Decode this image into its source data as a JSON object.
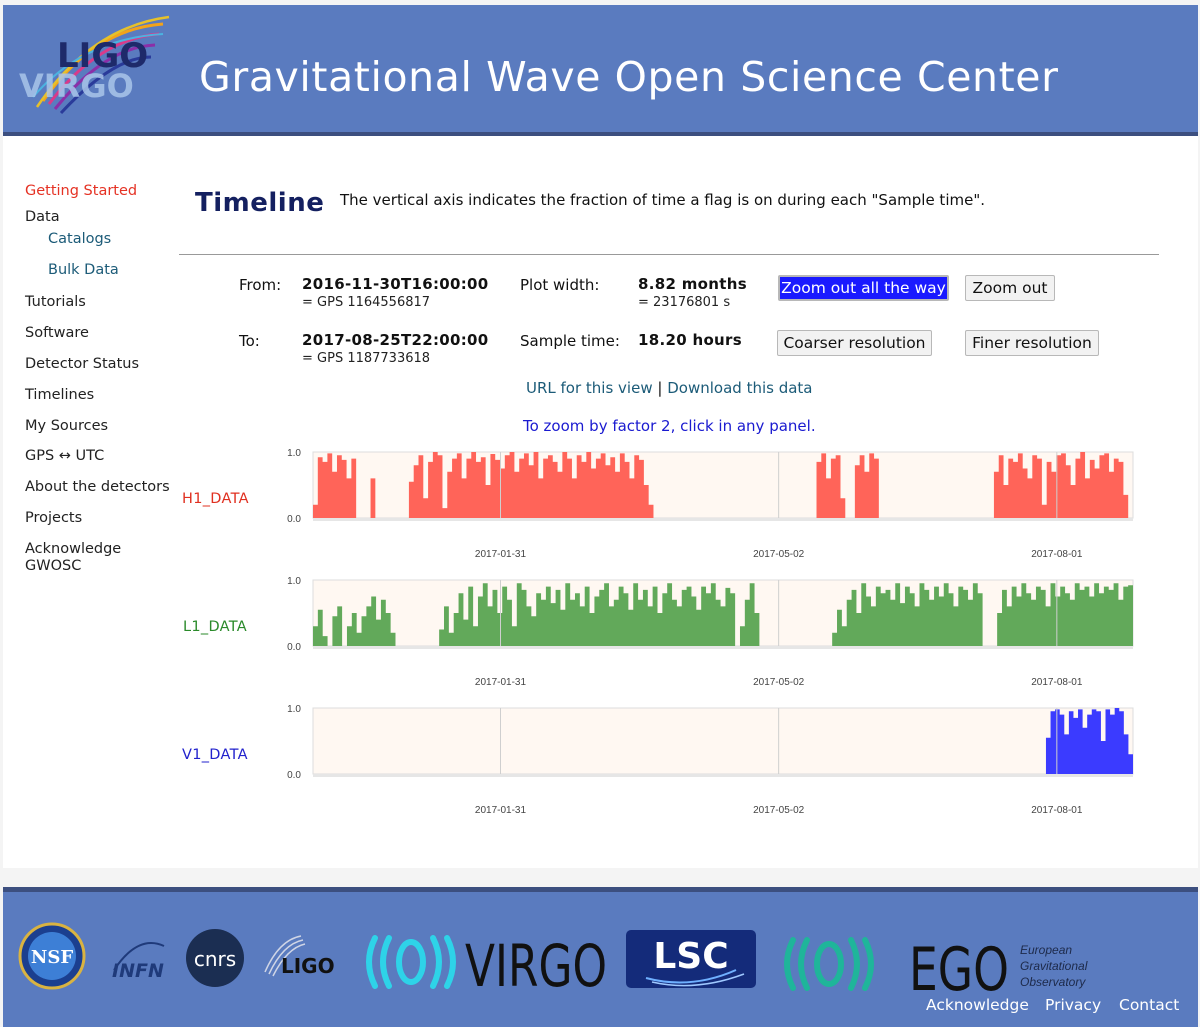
{
  "header": {
    "title": "Gravitational Wave Open Science Center",
    "logo_text_top": "LIGO",
    "logo_text_bottom": "VIRGO"
  },
  "sidebar": {
    "items": [
      {
        "label": "Getting Started",
        "active": true
      },
      {
        "label": "Data"
      },
      {
        "label": "Catalogs",
        "sub": true
      },
      {
        "label": "Bulk Data",
        "sub": true
      },
      {
        "label": "Tutorials"
      },
      {
        "label": "Software"
      },
      {
        "label": "Detector Status"
      },
      {
        "label": "Timelines"
      },
      {
        "label": "My Sources"
      },
      {
        "label": "GPS ↔ UTC"
      },
      {
        "label": "About the detectors"
      },
      {
        "label": "Projects"
      },
      {
        "label": "Acknowledge"
      },
      {
        "label": "GWOSC"
      }
    ]
  },
  "main": {
    "title": "Timeline",
    "description": "The vertical axis indicates the fraction of time a flag is on during each \"Sample time\".",
    "from_label": "From:",
    "from_value": "2016-11-30T16:00:00",
    "from_gps": "= GPS 1164556817",
    "to_label": "To:",
    "to_value": "2017-08-25T22:00:00",
    "to_gps": "= GPS 1187733618",
    "plot_width_label": "Plot width:",
    "plot_width_value": "8.82 months",
    "plot_width_seconds": "= 23176801 s",
    "sample_time_label": "Sample time:",
    "sample_time_value": "18.20 hours",
    "buttons": {
      "zoom_out_all": "Zoom out all the way",
      "zoom_out": "Zoom out",
      "coarser": "Coarser resolution",
      "finer": "Finer resolution"
    },
    "url_link": "URL for this view",
    "separator": "|",
    "download_link": "Download this data",
    "hint": "To zoom by factor 2, click in any panel."
  },
  "chart_data": {
    "type": "area",
    "x_range": [
      "2016-11-30T16:00:00",
      "2017-08-25T22:00:00"
    ],
    "ylim": [
      0,
      1
    ],
    "y_ticks": [
      "0.0",
      "1.0"
    ],
    "x_ticks": [
      "2017-01-31",
      "2017-05-02",
      "2017-08-01"
    ],
    "grid": true,
    "series": [
      {
        "name": "H1_DATA",
        "color": "#ff6459",
        "values": [
          0.2,
          0.92,
          0.85,
          0.98,
          0.7,
          0.95,
          0.88,
          0.6,
          0.9,
          0.0,
          0.0,
          0.0,
          0.6,
          0.0,
          0.0,
          0.0,
          0.0,
          0.0,
          0.0,
          0.0,
          0.55,
          0.8,
          0.95,
          0.3,
          0.85,
          1.0,
          0.95,
          0.15,
          0.7,
          0.9,
          0.98,
          0.6,
          0.9,
          1.0,
          0.85,
          0.92,
          0.5,
          0.97,
          0.88,
          0.75,
          0.95,
          1.0,
          0.7,
          0.9,
          0.98,
          0.8,
          1.0,
          0.6,
          0.9,
          0.95,
          0.85,
          0.7,
          1.0,
          0.9,
          0.6,
          0.95,
          0.85,
          1.0,
          0.75,
          0.9,
          0.98,
          0.8,
          0.92,
          0.7,
          0.98,
          0.85,
          0.6,
          0.95,
          0.88,
          0.5,
          0.2,
          0.0,
          0.0,
          0.0,
          0.0,
          0.0,
          0.0,
          0.0,
          0.0,
          0.0,
          0.0,
          0.0,
          0.0,
          0.0,
          0.0,
          0.0,
          0.0,
          0.0,
          0.0,
          0.0,
          0.0,
          0.0,
          0.0,
          0.0,
          0.0,
          0.0,
          0.0,
          0.0,
          0.0,
          0.0,
          0.0,
          0.0,
          0.0,
          0.0,
          0.0,
          0.85,
          0.98,
          0.6,
          0.9,
          0.95,
          0.3,
          0.0,
          0.0,
          0.8,
          0.95,
          0.7,
          0.98,
          0.9,
          0.0,
          0.0,
          0.0,
          0.0,
          0.0,
          0.0,
          0.0,
          0.0,
          0.0,
          0.0,
          0.0,
          0.0,
          0.0,
          0.0,
          0.0,
          0.0,
          0.0,
          0.0,
          0.0,
          0.0,
          0.0,
          0.0,
          0.0,
          0.0,
          0.7,
          0.95,
          0.5,
          0.9,
          0.85,
          0.98,
          0.75,
          0.6,
          0.95,
          0.9,
          0.2,
          0.85,
          0.7,
          0.95,
          0.98,
          0.8,
          0.5,
          0.9,
          1.0,
          0.6,
          0.88,
          0.75,
          0.95,
          0.98,
          0.7,
          0.9,
          0.85,
          0.35,
          0.0
        ]
      },
      {
        "name": "L1_DATA",
        "color": "#62a95a",
        "values": [
          0.3,
          0.55,
          0.15,
          0.0,
          0.45,
          0.6,
          0.0,
          0.3,
          0.5,
          0.2,
          0.45,
          0.6,
          0.75,
          0.4,
          0.7,
          0.5,
          0.2,
          0.0,
          0.0,
          0.0,
          0.0,
          0.0,
          0.0,
          0.0,
          0.0,
          0.0,
          0.25,
          0.6,
          0.2,
          0.5,
          0.8,
          0.4,
          0.9,
          0.3,
          0.75,
          0.95,
          0.6,
          0.85,
          0.5,
          0.9,
          0.7,
          0.3,
          0.95,
          0.85,
          0.6,
          0.45,
          0.8,
          0.7,
          0.9,
          0.65,
          0.85,
          0.55,
          0.95,
          0.7,
          0.8,
          0.6,
          0.9,
          0.5,
          0.75,
          0.85,
          0.95,
          0.6,
          0.7,
          0.9,
          0.8,
          0.55,
          0.95,
          0.7,
          0.85,
          0.6,
          0.9,
          0.5,
          0.8,
          0.95,
          0.7,
          0.6,
          0.85,
          0.9,
          0.75,
          0.55,
          0.9,
          0.8,
          0.95,
          0.7,
          0.6,
          0.88,
          0.8,
          0.0,
          0.3,
          0.7,
          0.95,
          0.5,
          0.0,
          0.0,
          0.0,
          0.0,
          0.0,
          0.0,
          0.0,
          0.0,
          0.0,
          0.0,
          0.0,
          0.0,
          0.0,
          0.0,
          0.0,
          0.2,
          0.55,
          0.3,
          0.7,
          0.85,
          0.5,
          0.95,
          0.75,
          0.6,
          0.9,
          0.8,
          0.85,
          0.7,
          0.95,
          0.65,
          0.9,
          0.8,
          0.6,
          0.95,
          0.85,
          0.7,
          0.9,
          0.75,
          0.95,
          0.8,
          0.6,
          0.9,
          0.85,
          0.7,
          0.95,
          0.8,
          0.0,
          0.0,
          0.0,
          0.5,
          0.85,
          0.6,
          0.9,
          0.75,
          0.95,
          0.8,
          0.7,
          0.9,
          0.85,
          0.6,
          0.95,
          0.75,
          0.9,
          0.8,
          0.7,
          0.95,
          0.85,
          0.9,
          0.75,
          0.95,
          0.8,
          0.9,
          0.85,
          0.95,
          0.7,
          0.9,
          0.92
        ]
      },
      {
        "name": "V1_DATA",
        "color": "#3b3bff",
        "values": [
          0,
          0,
          0,
          0,
          0,
          0,
          0,
          0,
          0,
          0,
          0,
          0,
          0,
          0,
          0,
          0,
          0,
          0,
          0,
          0,
          0,
          0,
          0,
          0,
          0,
          0,
          0,
          0,
          0,
          0,
          0,
          0,
          0,
          0,
          0,
          0,
          0,
          0,
          0,
          0,
          0,
          0,
          0,
          0,
          0,
          0,
          0,
          0,
          0,
          0,
          0,
          0,
          0,
          0,
          0,
          0,
          0,
          0,
          0,
          0,
          0,
          0,
          0,
          0,
          0,
          0,
          0,
          0,
          0,
          0,
          0,
          0,
          0,
          0,
          0,
          0,
          0,
          0,
          0,
          0,
          0,
          0,
          0,
          0,
          0,
          0,
          0,
          0,
          0,
          0,
          0,
          0,
          0,
          0,
          0,
          0,
          0,
          0,
          0,
          0,
          0,
          0,
          0,
          0,
          0,
          0,
          0,
          0,
          0,
          0,
          0,
          0,
          0,
          0,
          0,
          0,
          0,
          0,
          0,
          0,
          0,
          0,
          0,
          0,
          0,
          0,
          0,
          0,
          0,
          0,
          0,
          0,
          0,
          0,
          0,
          0,
          0,
          0,
          0,
          0,
          0,
          0,
          0,
          0,
          0,
          0,
          0,
          0,
          0,
          0,
          0,
          0,
          0,
          0,
          0,
          0,
          0,
          0,
          0,
          0,
          0.55,
          0.95,
          0.98,
          0.9,
          0.6,
          0.95,
          0.85,
          0.98,
          0.7,
          0.9,
          0.98,
          0.95,
          0.5,
          0.98,
          0.9,
          1.0,
          0.95,
          0.6,
          0.3
        ]
      }
    ]
  },
  "footer": {
    "logos": [
      "NSF",
      "INFN",
      "cnrs",
      "LIGO",
      "VIRGO",
      "LSC",
      "EGO"
    ],
    "ego_subtitle": [
      "European",
      "Gravitational",
      "Observatory"
    ],
    "links": [
      "Acknowledge",
      "Privacy",
      "Contact"
    ]
  },
  "colors": {
    "header_bg": "#5a7bbf",
    "active_nav": "#e53224",
    "link": "#1c5b78",
    "primary_button": "#1a1aff"
  }
}
